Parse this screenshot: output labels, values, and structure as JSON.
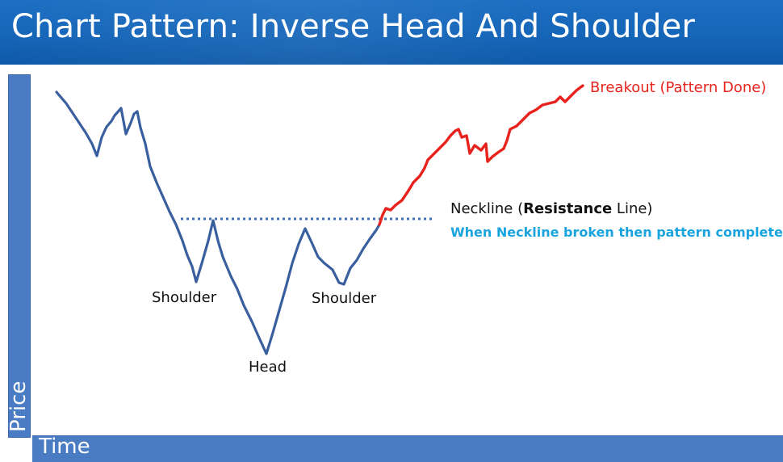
{
  "title": "Chart Pattern: Inverse Head And Shoulder",
  "axes": {
    "y_label": "Price",
    "x_label": "Time"
  },
  "labels": {
    "left_shoulder": "Shoulder",
    "head": "Head",
    "right_shoulder": "Shoulder",
    "breakout": "Breakout (Pattern Done)",
    "neckline_prefix": "Neckline (",
    "neckline_bold": "Resistance",
    "neckline_suffix": " Line)",
    "neckline_note": "When Neckline broken then pattern completed"
  },
  "colors": {
    "pattern_line": "#3a5f9e",
    "breakout_line": "#e8231e",
    "neckline": "#3f6fb5",
    "note_text": "#19a4e0",
    "bars": "#4a7cc4"
  }
}
